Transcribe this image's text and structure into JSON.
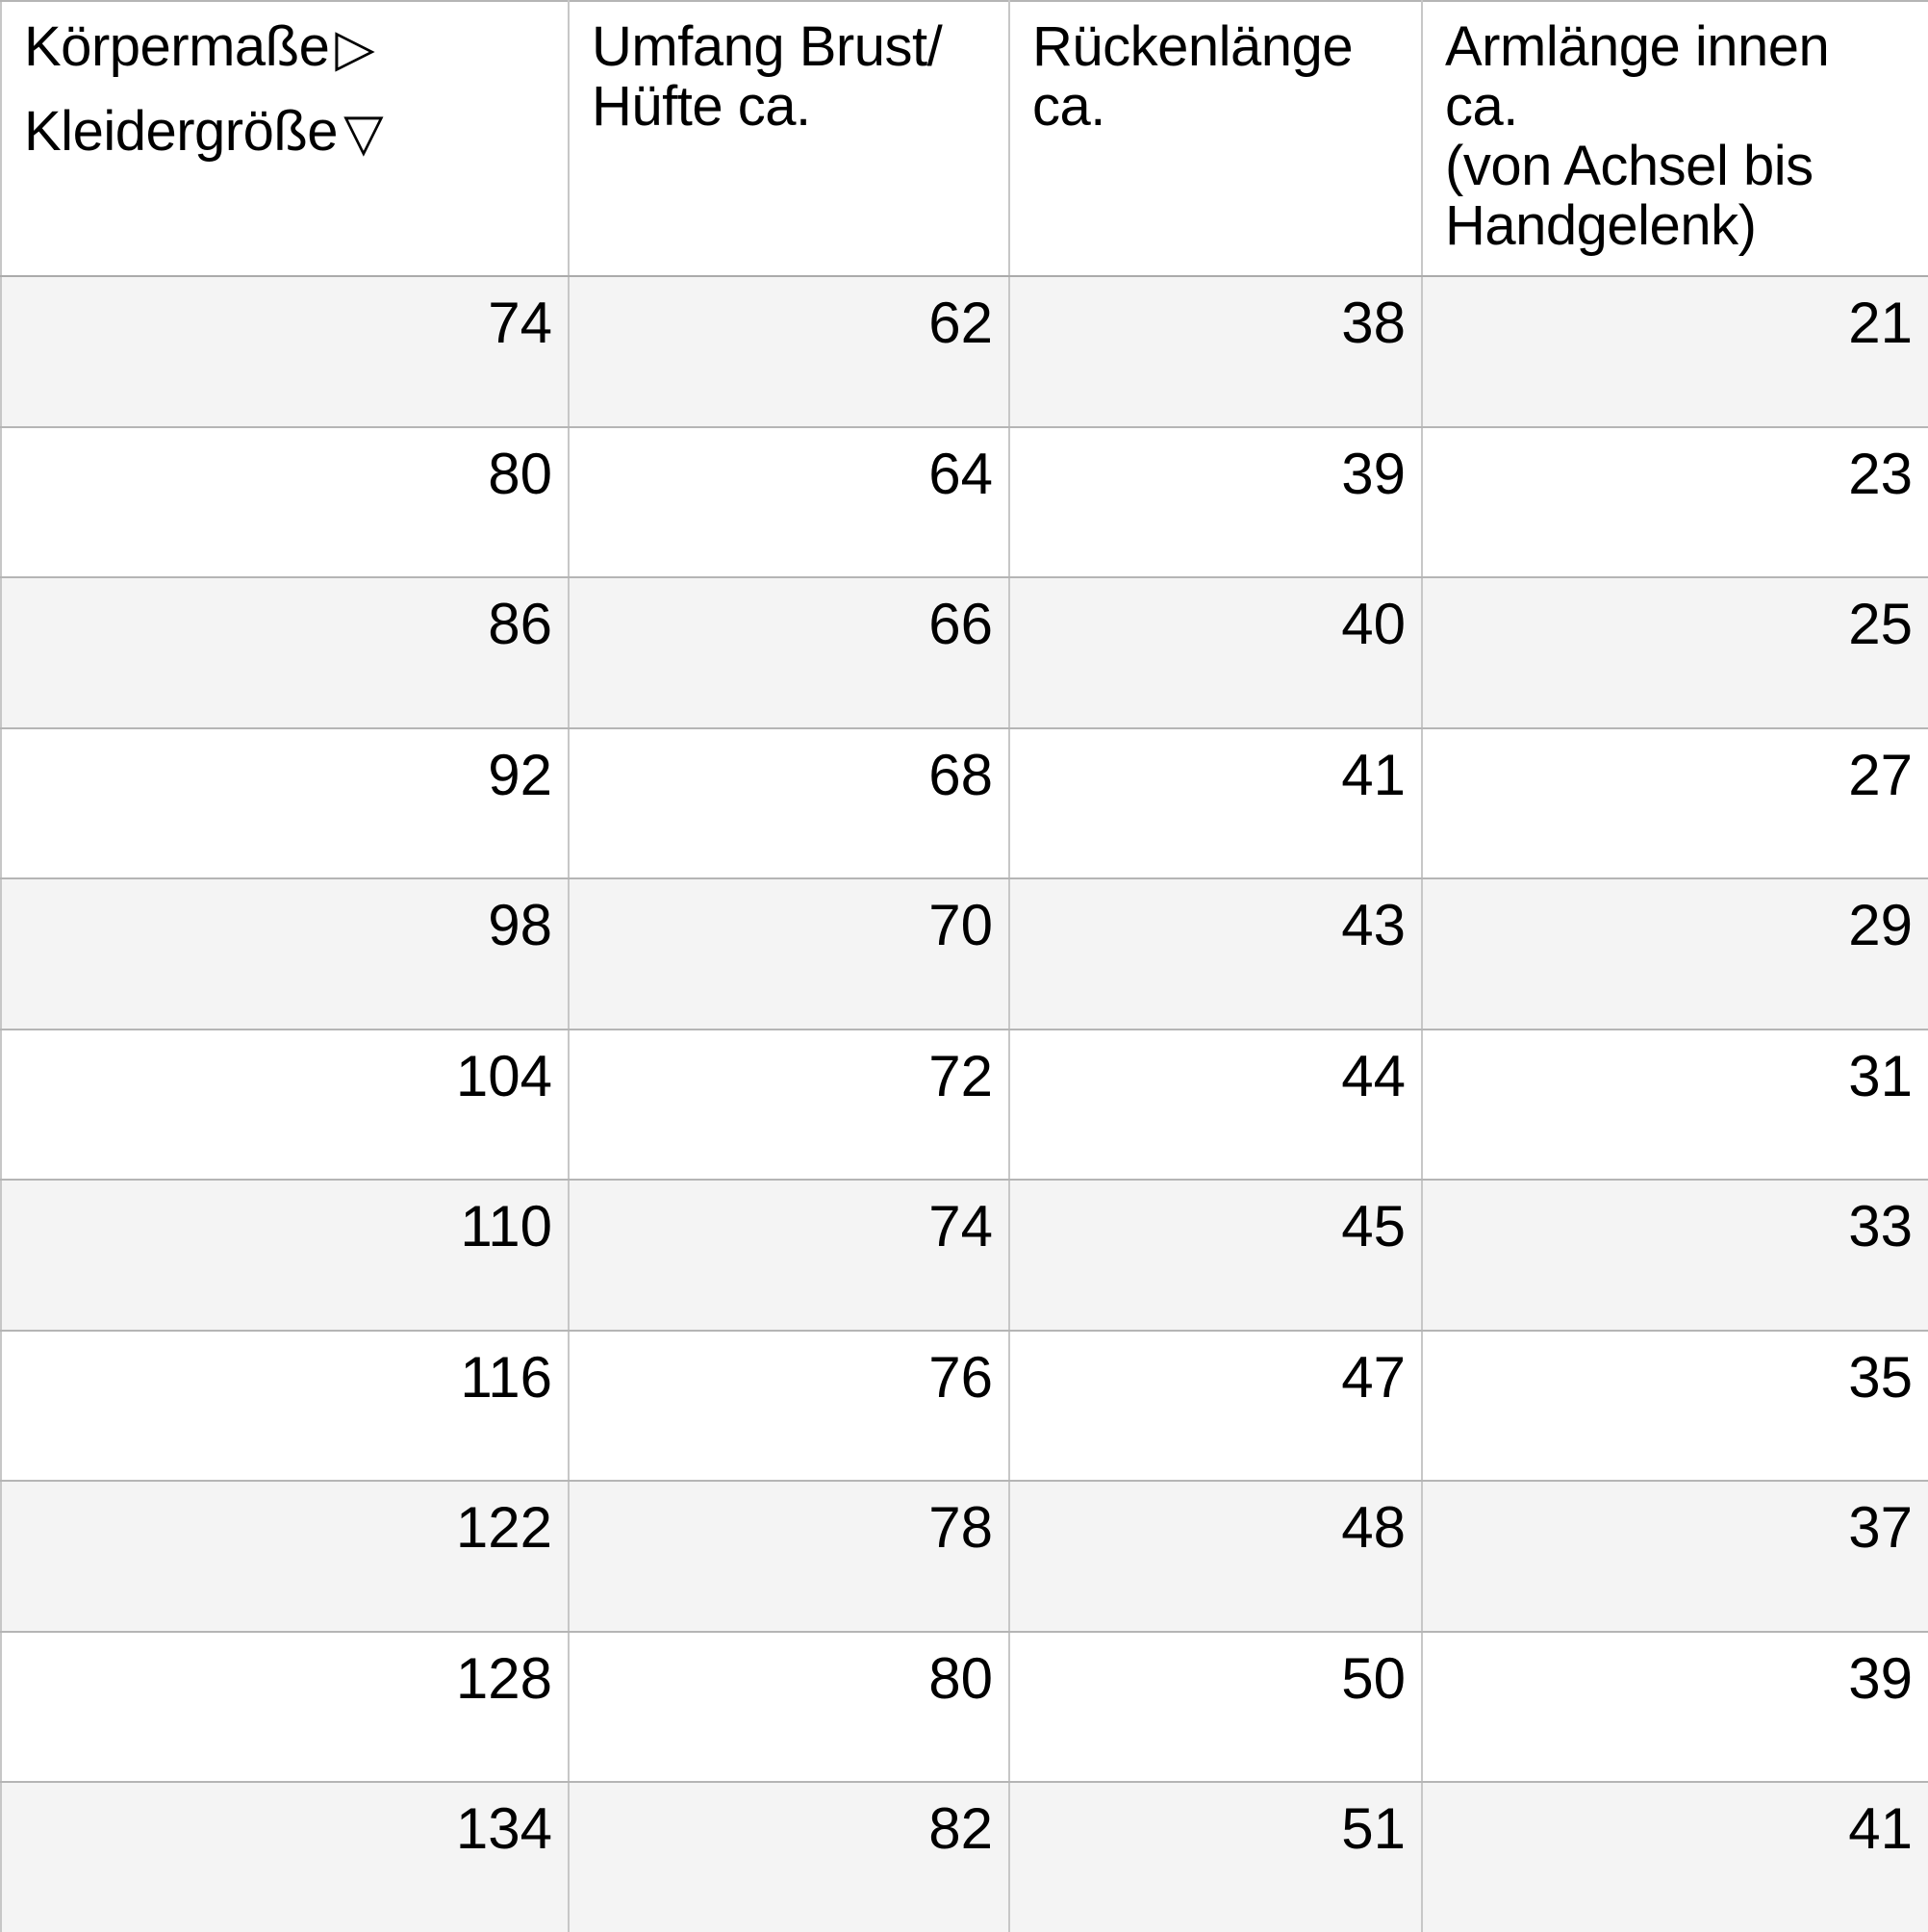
{
  "colors": {
    "background": "#ffffff",
    "text": "#000000",
    "zebra_row_bg": "#f4f4f4",
    "plain_row_bg": "#ffffff",
    "grid_line_horizontal": "#b5b5b5",
    "grid_line_vertical": "#c7c7c7"
  },
  "table": {
    "header": {
      "col1": {
        "row_axis_label": "Körpermaße",
        "row_axis_icon": "▷",
        "col_axis_label": "Kleidergröße",
        "col_axis_icon": "▽"
      },
      "col2": {
        "line1": "Umfang Brust/",
        "line2": "Hüfte ca."
      },
      "col3": {
        "line1": "Rückenlänge ca."
      },
      "col4": {
        "line1": "Armlänge innen ca.",
        "line2": "(von Achsel bis",
        "line3": "Handgelenk)"
      }
    },
    "rows": [
      {
        "size": "74",
        "chest_hip": "62",
        "back_length": "38",
        "arm_length": "21"
      },
      {
        "size": "80",
        "chest_hip": "64",
        "back_length": "39",
        "arm_length": "23"
      },
      {
        "size": "86",
        "chest_hip": "66",
        "back_length": "40",
        "arm_length": "25"
      },
      {
        "size": "92",
        "chest_hip": "68",
        "back_length": "41",
        "arm_length": "27"
      },
      {
        "size": "98",
        "chest_hip": "70",
        "back_length": "43",
        "arm_length": "29"
      },
      {
        "size": "104",
        "chest_hip": "72",
        "back_length": "44",
        "arm_length": "31"
      },
      {
        "size": "110",
        "chest_hip": "74",
        "back_length": "45",
        "arm_length": "33"
      },
      {
        "size": "116",
        "chest_hip": "76",
        "back_length": "47",
        "arm_length": "35"
      },
      {
        "size": "122",
        "chest_hip": "78",
        "back_length": "48",
        "arm_length": "37"
      },
      {
        "size": "128",
        "chest_hip": "80",
        "back_length": "50",
        "arm_length": "39"
      },
      {
        "size": "134",
        "chest_hip": "82",
        "back_length": "51",
        "arm_length": "41"
      }
    ]
  }
}
